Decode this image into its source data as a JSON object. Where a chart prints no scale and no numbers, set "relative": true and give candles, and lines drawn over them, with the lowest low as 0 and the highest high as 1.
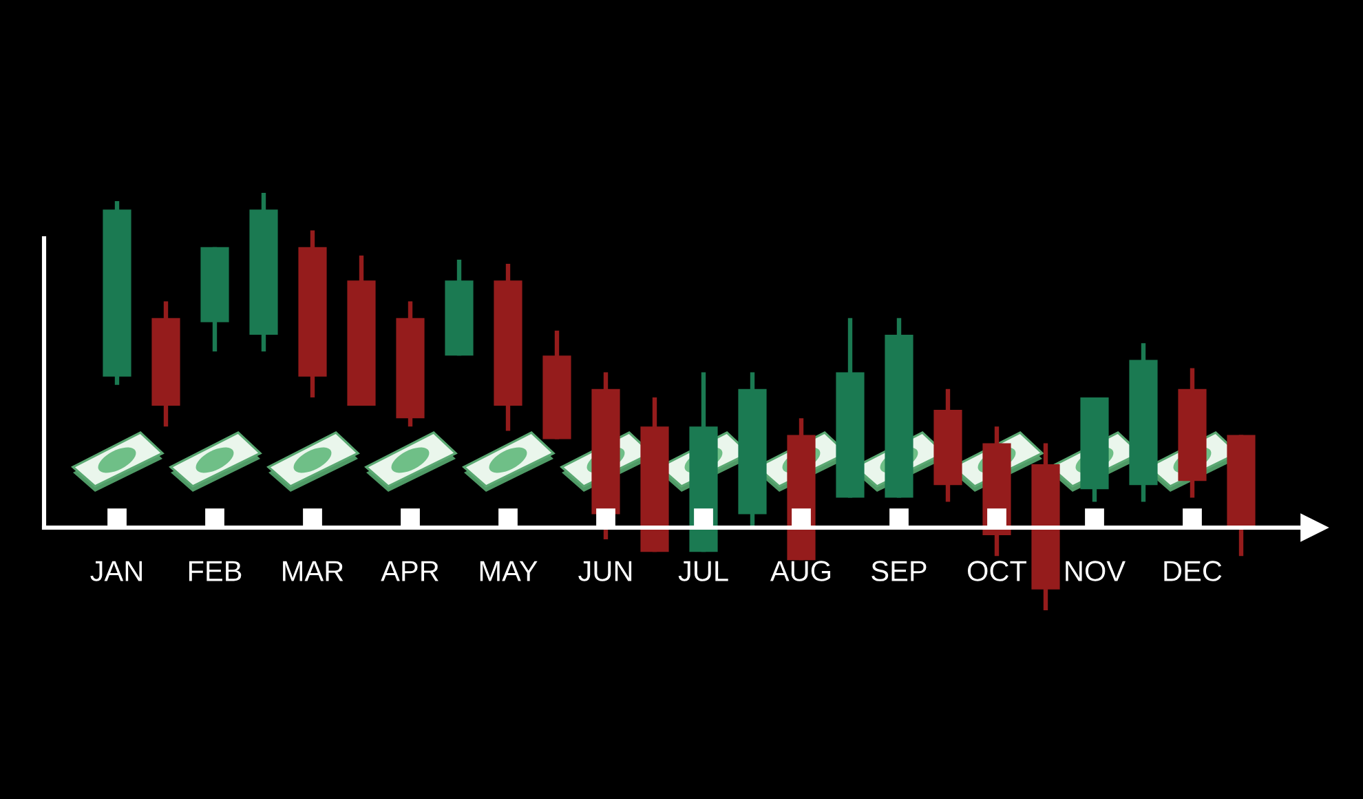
{
  "chart_data": {
    "type": "candlestick",
    "relative": true,
    "categories": [
      "JAN",
      null,
      "FEB",
      null,
      "MAR",
      null,
      "APR",
      null,
      "MAY",
      null,
      "JUN",
      null,
      "JUL",
      null,
      "AUG",
      null,
      "SEP",
      null,
      "OCT",
      null,
      "NOV",
      null,
      "DEC",
      null
    ],
    "ohlc": [
      [
        0.56,
        0.98,
        0.54,
        0.96
      ],
      [
        0.7,
        0.74,
        0.44,
        0.49
      ],
      [
        0.69,
        0.87,
        0.62,
        0.87
      ],
      [
        0.66,
        1,
        0.62,
        0.96
      ],
      [
        0.87,
        0.91,
        0.51,
        0.56
      ],
      [
        0.79,
        0.85,
        0.49,
        0.49
      ],
      [
        0.7,
        0.74,
        0.44,
        0.46
      ],
      [
        0.61,
        0.84,
        0.61,
        0.79
      ],
      [
        0.79,
        0.83,
        0.43,
        0.49
      ],
      [
        0.61,
        0.67,
        0.41,
        0.41
      ],
      [
        0.53,
        0.57,
        0.17,
        0.23
      ],
      [
        0.44,
        0.51,
        0.14,
        0.14
      ],
      [
        0.14,
        0.57,
        0.14,
        0.44
      ],
      [
        0.23,
        0.57,
        0.2,
        0.53
      ],
      [
        0.42,
        0.46,
        0.12,
        0.12
      ],
      [
        0.27,
        0.7,
        0.27,
        0.57
      ],
      [
        0.27,
        0.7,
        0.27,
        0.66
      ],
      [
        0.48,
        0.53,
        0.26,
        0.3
      ],
      [
        0.4,
        0.44,
        0.13,
        0.18
      ],
      [
        0.35,
        0.4,
        0,
        0.05
      ],
      [
        0.29,
        0.51,
        0.26,
        0.51
      ],
      [
        0.3,
        0.64,
        0.26,
        0.6
      ],
      [
        0.53,
        0.58,
        0.27,
        0.31
      ],
      [
        0.42,
        0.42,
        0.13,
        0.2
      ]
    ],
    "colors": [
      "#1b7a52",
      "#951c1c",
      "#1b7a52",
      "#1b7a52",
      "#951c1c",
      "#951c1c",
      "#951c1c",
      "#1b7a52",
      "#951c1c",
      "#951c1c",
      "#951c1c",
      "#951c1c",
      "#1b7a52",
      "#1b7a52",
      "#951c1c",
      "#1b7a52",
      "#1b7a52",
      "#951c1c",
      "#951c1c",
      "#951c1c",
      "#1b7a52",
      "#1b7a52",
      "#951c1c",
      "#951c1c"
    ]
  }
}
